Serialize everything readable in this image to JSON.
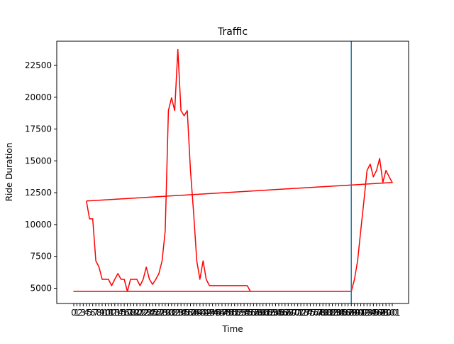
{
  "chart_data": {
    "type": "line",
    "title": "Traffic",
    "xlabel": "Time",
    "ylabel": "Ride Duration",
    "ylim": [
      3800,
      24400
    ],
    "yticks": [
      5000,
      7500,
      10000,
      12500,
      15000,
      17500,
      20000,
      22500
    ],
    "ytick_labels": [
      "5000",
      "7500",
      "10000",
      "12500",
      "15000",
      "17500",
      "20000",
      "22500"
    ],
    "x_tick_count": 102,
    "x_tick_labels": [
      "0",
      "1",
      "2",
      "3",
      "4",
      "5",
      "6",
      "7",
      "8",
      "9",
      "10",
      "11",
      "12",
      "13",
      "14",
      "15",
      "16",
      "17",
      "18",
      "19",
      "20",
      "21",
      "22",
      "23",
      "24",
      "25",
      "26",
      "27",
      "28",
      "29",
      "30",
      "31",
      "32",
      "33",
      "34",
      "35",
      "36",
      "37",
      "38",
      "39",
      "40",
      "41",
      "42",
      "43",
      "44",
      "45",
      "46",
      "47",
      "48",
      "49",
      "50",
      "51",
      "52",
      "53",
      "54",
      "55",
      "56",
      "57",
      "58",
      "59",
      "60",
      "61",
      "62",
      "63",
      "64",
      "65",
      "66",
      "67",
      "68",
      "69",
      "70",
      "71",
      "72",
      "73",
      "74",
      "75",
      "76",
      "77",
      "78",
      "79",
      "80",
      "81",
      "82",
      "83",
      "84",
      "85",
      "86",
      "87",
      "88",
      "89",
      "90",
      "91",
      "92",
      "93",
      "94",
      "95",
      "96",
      "97",
      "98",
      "99",
      "100",
      "101"
    ],
    "grid": false,
    "series": [
      {
        "color": "#ff0000",
        "points": [
          [
            4,
            11850
          ],
          [
            5,
            10450
          ],
          [
            6,
            10450
          ],
          [
            7,
            7150
          ],
          [
            8,
            6650
          ],
          [
            9,
            5700
          ],
          [
            10,
            5700
          ],
          [
            11,
            5700
          ],
          [
            12,
            5200
          ],
          [
            13,
            5700
          ],
          [
            14,
            6150
          ],
          [
            15,
            5700
          ],
          [
            16,
            5700
          ],
          [
            17,
            4750
          ],
          [
            18,
            5700
          ],
          [
            19,
            5700
          ],
          [
            20,
            5700
          ],
          [
            21,
            5200
          ],
          [
            22,
            5700
          ],
          [
            23,
            6650
          ],
          [
            24,
            5700
          ],
          [
            25,
            5300
          ],
          [
            26,
            5700
          ],
          [
            27,
            6150
          ],
          [
            28,
            7150
          ],
          [
            29,
            9500
          ],
          [
            30,
            18950
          ],
          [
            31,
            19950
          ],
          [
            32,
            18950
          ],
          [
            33,
            23750
          ],
          [
            34,
            18950
          ],
          [
            35,
            18550
          ],
          [
            36,
            18950
          ],
          [
            37,
            14250
          ],
          [
            38,
            10950
          ],
          [
            39,
            7150
          ],
          [
            40,
            5700
          ],
          [
            41,
            7150
          ],
          [
            42,
            5700
          ],
          [
            43,
            5200
          ],
          [
            44,
            5200
          ],
          [
            45,
            5200
          ],
          [
            46,
            5200
          ],
          [
            47,
            5200
          ],
          [
            48,
            5200
          ],
          [
            49,
            5200
          ],
          [
            50,
            5200
          ],
          [
            51,
            5200
          ],
          [
            52,
            5200
          ],
          [
            53,
            5200
          ],
          [
            54,
            5200
          ],
          [
            55,
            5200
          ],
          [
            56,
            4750
          ],
          [
            57,
            4750
          ],
          [
            58,
            4750
          ],
          [
            59,
            4750
          ],
          [
            60,
            4750
          ],
          [
            61,
            4750
          ],
          [
            62,
            4750
          ],
          [
            63,
            4750
          ],
          [
            64,
            4750
          ],
          [
            65,
            4750
          ],
          [
            66,
            4750
          ],
          [
            67,
            4750
          ],
          [
            68,
            4750
          ],
          [
            0,
            4750
          ],
          [
            88,
            4750
          ],
          [
            89,
            5700
          ],
          [
            90,
            7150
          ],
          [
            91,
            9500
          ],
          [
            92,
            11850
          ],
          [
            93,
            14250
          ],
          [
            94,
            14750
          ],
          [
            95,
            13750
          ],
          [
            96,
            14250
          ],
          [
            97,
            15200
          ],
          [
            98,
            13300
          ],
          [
            99,
            14250
          ],
          [
            100,
            13750
          ],
          [
            101,
            13300
          ],
          [
            4,
            11850
          ]
        ]
      }
    ],
    "vertical_line": {
      "x": 88,
      "color": "#1f77b4"
    }
  }
}
